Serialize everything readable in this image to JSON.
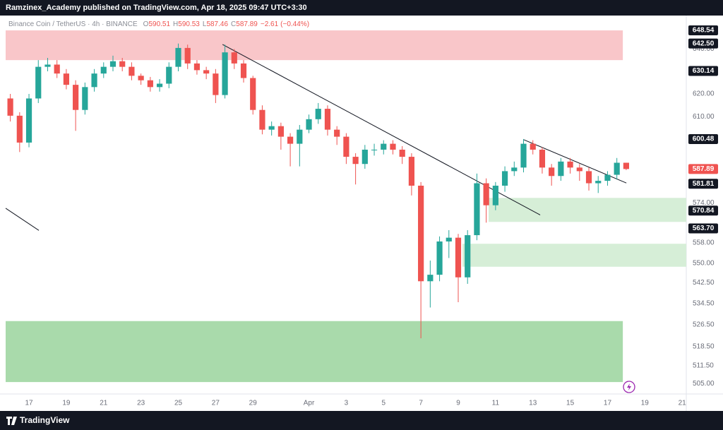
{
  "header": {
    "attribution": "Ramzinex_Academy published on TradingView.com, Apr 18, 2025 09:47 UTC+3:30"
  },
  "footer": {
    "brand": "TradingView"
  },
  "chart_data": {
    "type": "candlestick",
    "symbol": "Binance Coin / TetherUS · 4h · BINANCE",
    "ohlc_labels": [
      "O",
      "H",
      "L",
      "C"
    ],
    "change": {
      "value": -2.61,
      "label": "−2.61"
    },
    "change_pct": {
      "value": -0.44,
      "label": "(−0.44%)"
    },
    "up_color": "#26a69a",
    "down_color": "#ef5350",
    "log_scale": true,
    "grid": false,
    "xlim": [
      -1.25,
      35.22
    ],
    "ylim": [
      502.1,
      653.4
    ],
    "xticks": [
      {
        "value": 0,
        "label": "17"
      },
      {
        "value": 2,
        "label": "19"
      },
      {
        "value": 4,
        "label": "21"
      },
      {
        "value": 6,
        "label": "23"
      },
      {
        "value": 8,
        "label": "25"
      },
      {
        "value": 10,
        "label": "27"
      },
      {
        "value": 12,
        "label": "29"
      },
      {
        "value": 15,
        "label": "Apr"
      },
      {
        "value": 17,
        "label": "3"
      },
      {
        "value": 19,
        "label": "5"
      },
      {
        "value": 21,
        "label": "7"
      },
      {
        "value": 23,
        "label": "9"
      },
      {
        "value": 25,
        "label": "11"
      },
      {
        "value": 27,
        "label": "13"
      },
      {
        "value": 29,
        "label": "15"
      },
      {
        "value": 31,
        "label": "17"
      },
      {
        "value": 33,
        "label": "19"
      },
      {
        "value": 35,
        "label": "21"
      }
    ],
    "yticks": [
      {
        "value": 640,
        "label": "640.00"
      },
      {
        "value": 620,
        "label": "620.00"
      },
      {
        "value": 610,
        "label": "610.00"
      },
      {
        "value": 574,
        "label": "574.00"
      },
      {
        "value": 558,
        "label": "558.00"
      },
      {
        "value": 550,
        "label": "550.00"
      },
      {
        "value": 542.5,
        "label": "542.50"
      },
      {
        "value": 534.5,
        "label": "534.50"
      },
      {
        "value": 526.5,
        "label": "526.50"
      },
      {
        "value": 518.5,
        "label": "518.50"
      },
      {
        "value": 511.5,
        "label": "511.50"
      },
      {
        "value": 505,
        "label": "505.00"
      }
    ],
    "price_labels": [
      648.54,
      {
        "value": 642.5,
        "label": "642.50"
      },
      630.14,
      600.48,
      581.81,
      570.84,
      {
        "value": 563.7,
        "label": "563.70"
      }
    ],
    "zones": [
      {
        "x": [
          -1.25,
          31.82
        ],
        "y": [
          635.0,
          648.5
        ],
        "color": "#f9c6c9"
      },
      {
        "x": [
          24.63,
          35.22
        ],
        "y": [
          566.3,
          576.0
        ],
        "color": "#d6eed7"
      },
      {
        "x": [
          23.23,
          35.22
        ],
        "y": [
          548.6,
          557.6
        ],
        "color": "#d6eed7"
      },
      {
        "x": [
          -1.25,
          31.82
        ],
        "y": [
          505.6,
          527.9
        ],
        "color": "#a9daab"
      }
    ],
    "trendlines": [
      {
        "x": [
          -1.25,
          0.53
        ],
        "y": [
          571.8,
          562.9
        ],
        "color": "#131722"
      },
      {
        "x": [
          10.37,
          27.39
        ],
        "y": [
          642.1,
          569.1
        ],
        "color": "#131722"
      },
      {
        "x": [
          26.52,
          32.01
        ],
        "y": [
          600.2,
          582.1
        ],
        "color": "#131722"
      }
    ],
    "x": [
      -1,
      -0.5,
      0,
      0.5,
      1,
      1.5,
      2,
      2.5,
      3,
      3.5,
      4,
      4.5,
      5,
      5.5,
      6,
      6.5,
      7,
      7.5,
      8,
      8.5,
      9,
      9.5,
      10,
      10.5,
      11,
      11.5,
      12,
      12.5,
      13,
      13.5,
      14,
      14.5,
      15,
      15.5,
      16,
      16.5,
      17,
      17.5,
      18,
      18.5,
      19,
      19.5,
      20,
      20.5,
      21,
      21.5,
      22,
      22.5,
      23,
      23.5,
      24,
      24.5,
      25,
      25.5,
      26,
      26.5,
      27,
      27.5,
      28,
      28.5,
      29,
      29.5,
      30,
      30.5,
      31,
      31.5,
      32
    ],
    "open": [
      618,
      610.5,
      599,
      618,
      632,
      633,
      629,
      624,
      613,
      623,
      629,
      632,
      634.5,
      632,
      628,
      626,
      623,
      624.5,
      632,
      640.5,
      633.5,
      630.5,
      629,
      619.5,
      638.5,
      633.5,
      627,
      613,
      604.5,
      606,
      601.5,
      598.5,
      604.5,
      609,
      613.5,
      604.5,
      601.5,
      593,
      590,
      596,
      596,
      598.5,
      596,
      593,
      581,
      543,
      545.5,
      558.5,
      560,
      544.5,
      561,
      582,
      573,
      581,
      587,
      588.5,
      598.5,
      596,
      588.5,
      585,
      591,
      588.5,
      587,
      582,
      583,
      585.5,
      590.51
    ],
    "high": [
      620,
      612,
      620,
      635,
      636,
      635,
      631,
      626,
      625,
      631,
      634,
      637,
      636,
      634,
      629,
      627.5,
      626.5,
      634,
      642.5,
      642,
      635,
      632,
      631,
      642,
      640,
      635,
      628,
      615,
      608,
      607.5,
      603,
      606.5,
      611,
      616,
      615,
      606,
      603,
      594.5,
      598,
      598.5,
      600,
      600,
      597.5,
      594.5,
      582.5,
      551,
      560.5,
      563,
      561.5,
      563,
      586,
      584,
      582.5,
      589,
      591,
      600.5,
      600,
      597,
      590,
      592.5,
      592.5,
      590,
      588.5,
      585,
      587,
      592.5,
      590.53
    ],
    "low": [
      608,
      595,
      597,
      616,
      630,
      627,
      622,
      604,
      611,
      621,
      627,
      630,
      630,
      626,
      624,
      621,
      621,
      622.5,
      630,
      631,
      628.5,
      626.5,
      616,
      618,
      631,
      625,
      611,
      602.5,
      602,
      596,
      589,
      589,
      603,
      607,
      602,
      598,
      590,
      581.5,
      588,
      593.5,
      594,
      594,
      590,
      577,
      521.5,
      533,
      543,
      552,
      535,
      542,
      559,
      566,
      571,
      578.5,
      585,
      586.5,
      594,
      586,
      581,
      583,
      586,
      583,
      579,
      578,
      581,
      583.5,
      587.46
    ],
    "close": [
      610.5,
      599,
      618,
      632,
      633,
      629,
      624,
      613,
      623,
      629,
      632,
      634.5,
      632,
      628,
      626,
      623,
      624.5,
      632,
      640.5,
      633.5,
      630.5,
      629,
      619.5,
      638.5,
      633.5,
      627,
      613,
      604.5,
      606,
      601.5,
      598.5,
      604.5,
      609,
      613.5,
      604.5,
      601.5,
      593,
      590,
      596,
      596,
      598.5,
      596,
      593,
      581,
      543,
      545.5,
      558.5,
      560,
      544.5,
      561,
      582,
      573,
      581,
      587,
      588.5,
      598.5,
      596,
      588.5,
      585,
      591,
      588.5,
      587,
      582,
      583,
      585.5,
      590.51,
      587.89
    ]
  }
}
